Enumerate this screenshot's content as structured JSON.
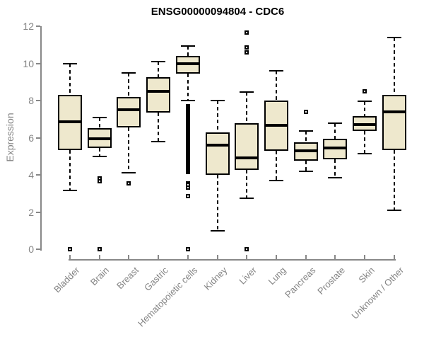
{
  "colors": {
    "box_fill": "#EEE8CD",
    "box_stroke": "#000000",
    "axis": "#888888",
    "tick_text": "#848484",
    "title_text": "#000000"
  },
  "chart_data": {
    "type": "boxplot",
    "title": "ENSG00000094804 - CDC6",
    "xlabel": "",
    "ylabel": "Expression",
    "ylim": [
      0,
      12
    ],
    "yticks": [
      0,
      2,
      4,
      6,
      8,
      10,
      12
    ],
    "grid": "off",
    "legend": "none",
    "categories": [
      "Bladder",
      "Brain",
      "Breast",
      "Gastric",
      "Hematopoietic cells",
      "Kidney",
      "Liver",
      "Lung",
      "Pancreas",
      "Prostate",
      "Skin",
      "Unknown / Other"
    ],
    "series": [
      {
        "name": "Bladder",
        "whisker_low": 3.15,
        "q1": 5.35,
        "median": 6.85,
        "q3": 8.3,
        "whisker_high": 10.0,
        "outliers": [
          0
        ],
        "outlier_band": null
      },
      {
        "name": "Brain",
        "whisker_low": 5.0,
        "q1": 5.45,
        "median": 5.95,
        "q3": 6.5,
        "whisker_high": 7.1,
        "outliers": [
          3.8,
          3.65,
          0
        ],
        "outlier_band": null
      },
      {
        "name": "Breast",
        "whisker_low": 4.1,
        "q1": 6.55,
        "median": 7.5,
        "q3": 8.2,
        "whisker_high": 9.5,
        "outliers": [
          3.55
        ],
        "outlier_band": null
      },
      {
        "name": "Gastric",
        "whisker_low": 5.8,
        "q1": 7.35,
        "median": 8.5,
        "q3": 9.25,
        "whisker_high": 10.1,
        "outliers": [],
        "outlier_band": null
      },
      {
        "name": "Hematopoietic cells",
        "whisker_low": 8.0,
        "q1": 9.45,
        "median": 10.0,
        "q3": 10.4,
        "whisker_high": 10.95,
        "outliers": [
          3.55,
          3.45,
          3.3,
          2.85,
          0
        ],
        "outlier_band": [
          4.05,
          7.8
        ]
      },
      {
        "name": "Kidney",
        "whisker_low": 1.0,
        "q1": 4.0,
        "median": 5.6,
        "q3": 6.3,
        "whisker_high": 8.0,
        "outliers": [],
        "outlier_band": null
      },
      {
        "name": "Liver",
        "whisker_low": 2.75,
        "q1": 4.25,
        "median": 4.9,
        "q3": 6.8,
        "whisker_high": 8.45,
        "outliers": [
          11.65,
          10.85,
          10.6,
          0
        ],
        "outlier_band": null
      },
      {
        "name": "Lung",
        "whisker_low": 3.7,
        "q1": 5.3,
        "median": 6.65,
        "q3": 8.0,
        "whisker_high": 9.6,
        "outliers": [],
        "outlier_band": null
      },
      {
        "name": "Pancreas",
        "whisker_low": 4.2,
        "q1": 4.75,
        "median": 5.3,
        "q3": 5.75,
        "whisker_high": 6.35,
        "outliers": [
          7.4
        ],
        "outlier_band": null
      },
      {
        "name": "Prostate",
        "whisker_low": 3.85,
        "q1": 4.85,
        "median": 5.45,
        "q3": 5.95,
        "whisker_high": 6.8,
        "outliers": [],
        "outlier_band": null
      },
      {
        "name": "Skin",
        "whisker_low": 5.15,
        "q1": 6.35,
        "median": 6.7,
        "q3": 7.15,
        "whisker_high": 7.95,
        "outliers": [
          8.5
        ],
        "outlier_band": null
      },
      {
        "name": "Unknown / Other",
        "whisker_low": 2.1,
        "q1": 5.35,
        "median": 7.4,
        "q3": 8.3,
        "whisker_high": 11.4,
        "outliers": [],
        "outlier_band": null
      }
    ]
  }
}
